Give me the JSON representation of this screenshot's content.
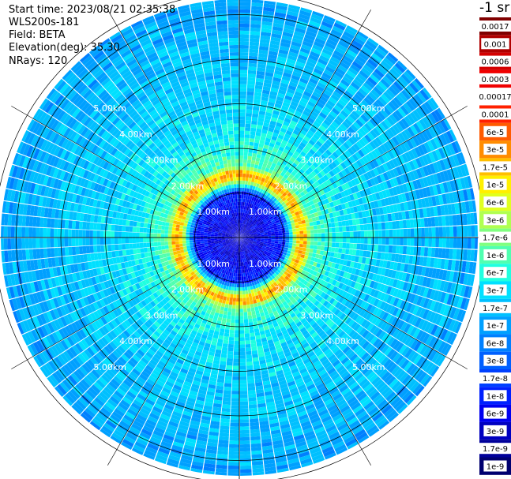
{
  "header": {
    "start_time": "Start time: 2023/08/21 02:35:38",
    "instrument": "WLS200s-181",
    "field": "Field: BETA",
    "elevation": "Elevation(deg): 35.30",
    "nrays": "NRays: 120"
  },
  "colorbar": {
    "unit": "-1 sr",
    "labels": [
      "0.0017",
      "0.001",
      "0.0006",
      "0.0003",
      "0.00017",
      "0.0001",
      "6e-5",
      "3e-5",
      "1.7e-5",
      "1e-5",
      "6e-6",
      "3e-6",
      "1.7e-6",
      "1e-6",
      "6e-7",
      "3e-7",
      "1.7e-7",
      "1e-7",
      "6e-8",
      "3e-8",
      "1.7e-8",
      "1e-8",
      "6e-9",
      "3e-9",
      "1.7e-9",
      "1e-9"
    ],
    "colors": [
      "#800000",
      "#b00000",
      "#d40000",
      "#f00000",
      "#ffffff",
      "#ff2000",
      "#ff5a00",
      "#ff8c00",
      "#ffbf00",
      "#fff000",
      "#e0ff20",
      "#b0ff50",
      "#80ff80",
      "#50ffb0",
      "#20ffe0",
      "#00e0ff",
      "#00c0ff",
      "#00a0ff",
      "#0080ff",
      "#0060ff",
      "#0040ff",
      "#0020ff",
      "#0000f0",
      "#0000c0",
      "#00009a",
      "#000070"
    ]
  },
  "chart_data": {
    "type": "heatmap",
    "projection": "polar PPI scan",
    "field": "BETA",
    "unit": "-1 sr",
    "elevation_deg": 35.3,
    "n_rays": 120,
    "range_rings_km": [
      1,
      2,
      3,
      4,
      5
    ],
    "ring_labels": [
      "1.00km",
      "2.00km",
      "3.00km",
      "4.00km",
      "5.00km"
    ],
    "max_range_km": 5.9,
    "radial_profile": [
      {
        "range_km": 0.0,
        "value": 3e-09
      },
      {
        "range_km": 1.0,
        "value": 1e-08
      },
      {
        "range_km": 1.3,
        "value": 1e-05
      },
      {
        "range_km": 1.45,
        "value": 3e-05
      },
      {
        "range_km": 1.6,
        "value": 1e-06
      },
      {
        "range_km": 2.5,
        "value": 3e-07
      },
      {
        "range_km": 4.0,
        "value": 1.7e-07
      },
      {
        "range_km": 5.9,
        "value": 1e-07
      }
    ],
    "grid": true
  }
}
